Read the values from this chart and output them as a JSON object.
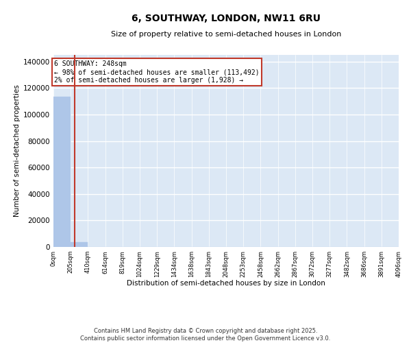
{
  "title": "6, SOUTHWAY, LONDON, NW11 6RU",
  "subtitle": "Size of property relative to semi-detached houses in London",
  "xlabel": "Distribution of semi-detached houses by size in London",
  "ylabel": "Number of semi-detached properties",
  "footnote1": "Contains HM Land Registry data © Crown copyright and database right 2025.",
  "footnote2": "Contains public sector information licensed under the Open Government Licence v3.0.",
  "annotation_title": "6 SOUTHWAY: 248sqm",
  "annotation_line1": "← 98% of semi-detached houses are smaller (113,492)",
  "annotation_line2": "2% of semi-detached houses are larger (1,928) →",
  "property_size": 248,
  "bar_color": "#aec6e8",
  "vline_color": "#c0392b",
  "annotation_box_color": "#c0392b",
  "background_color": "#dce8f5",
  "grid_color": "#ffffff",
  "bins": [
    0,
    205,
    410,
    614,
    819,
    1024,
    1229,
    1434,
    1638,
    1843,
    2048,
    2253,
    2458,
    2662,
    2867,
    3072,
    3277,
    3482,
    3686,
    3891,
    4096
  ],
  "bin_labels": [
    "0sqm",
    "205sqm",
    "410sqm",
    "614sqm",
    "819sqm",
    "1024sqm",
    "1229sqm",
    "1434sqm",
    "1638sqm",
    "1843sqm",
    "2048sqm",
    "2253sqm",
    "2458sqm",
    "2662sqm",
    "2867sqm",
    "3072sqm",
    "3277sqm",
    "3482sqm",
    "3686sqm",
    "3891sqm",
    "4096sqm"
  ],
  "counts": [
    113492,
    3832,
    64,
    10,
    6,
    3,
    2,
    1,
    1,
    0,
    1,
    0,
    0,
    0,
    0,
    0,
    0,
    0,
    0,
    0
  ],
  "ylim": [
    0,
    145000
  ],
  "yticks": [
    0,
    20000,
    40000,
    60000,
    80000,
    100000,
    120000,
    140000
  ],
  "title_fontsize": 10,
  "subtitle_fontsize": 8,
  "ylabel_fontsize": 7.5,
  "xlabel_fontsize": 7.5,
  "ytick_fontsize": 7.5,
  "xtick_fontsize": 6,
  "footnote_fontsize": 6,
  "annotation_fontsize": 7
}
